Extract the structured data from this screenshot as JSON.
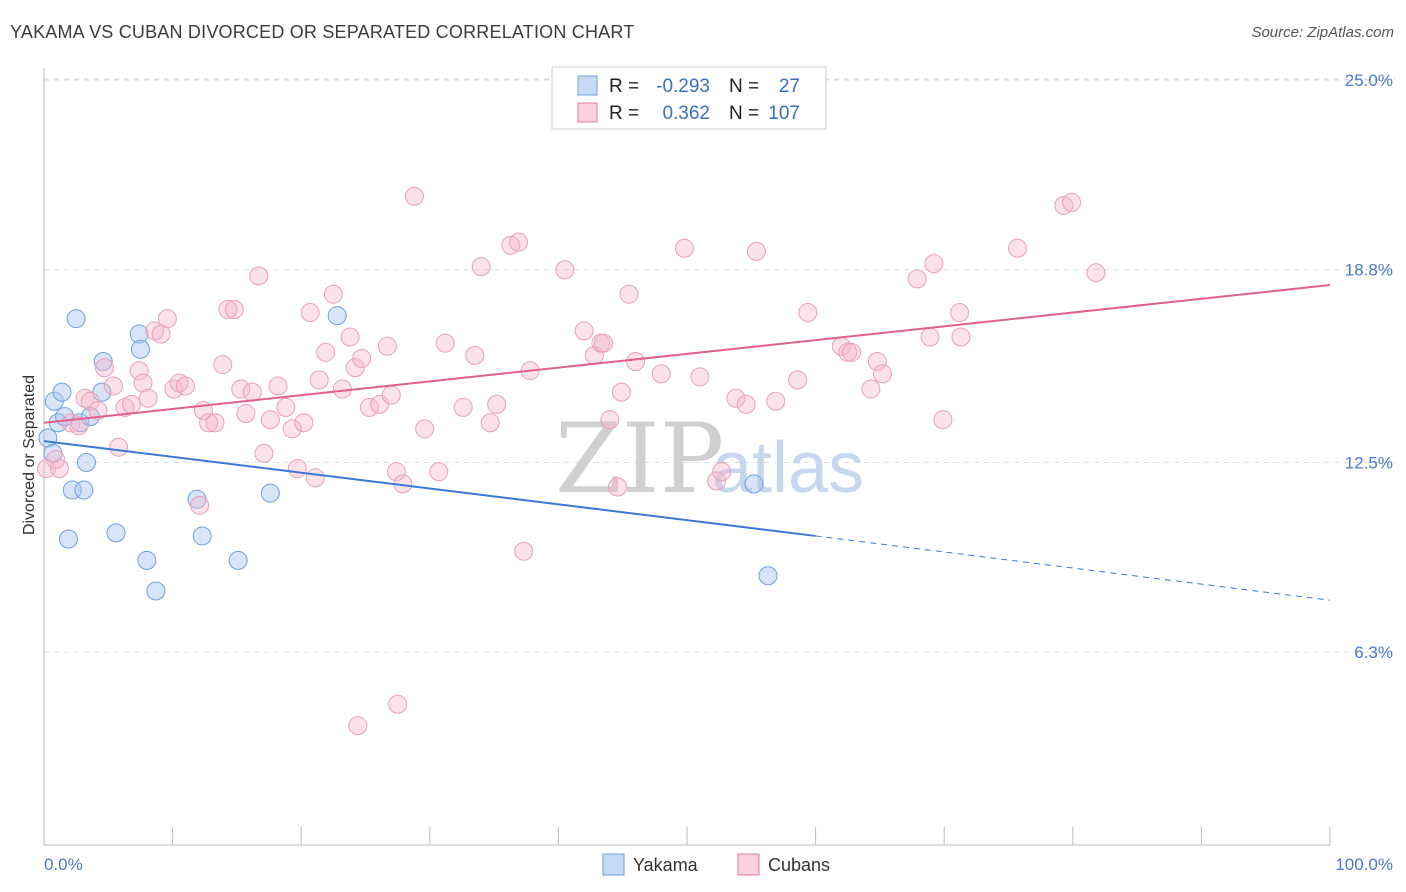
{
  "header": {
    "title": "YAKAMA VS CUBAN DIVORCED OR SEPARATED CORRELATION CHART",
    "source": "Source: ZipAtlas.com"
  },
  "watermark": {
    "zip": "ZIP",
    "atlas": "atlas"
  },
  "legend": {
    "rows": [
      {
        "r_label": "R =",
        "r_value": "-0.293",
        "n_label": "N =",
        "n_value": "27",
        "color": "#a9c5ef"
      },
      {
        "r_label": "R =",
        "r_value": "0.362",
        "n_label": "N =",
        "n_value": "107",
        "color": "#f5b6cb"
      }
    ]
  },
  "bottom_legend": [
    {
      "label": "Yakama",
      "color": "#a9c5ef"
    },
    {
      "label": "Cubans",
      "color": "#f5b6cb"
    }
  ],
  "chart_data": {
    "type": "scatter",
    "title": "YAKAMA VS CUBAN DIVORCED OR SEPARATED CORRELATION CHART",
    "xlabel": "",
    "ylabel": "Divorced or Separated",
    "xlim": [
      0,
      100
    ],
    "ylim": [
      0,
      26
    ],
    "x_tick_labels": [
      "0.0%",
      "100.0%"
    ],
    "y_ticks": [
      6.3,
      12.5,
      18.8,
      25.0
    ],
    "y_tick_labels": [
      "6.3%",
      "12.5%",
      "18.8%",
      "25.0%"
    ],
    "grid": "horizontal dashed",
    "series": [
      {
        "name": "Yakama",
        "color": "#6fa0e0",
        "points": [
          [
            0.3,
            13.3
          ],
          [
            0.7,
            12.8
          ],
          [
            0.8,
            14.5
          ],
          [
            1.1,
            13.8
          ],
          [
            1.4,
            14.8
          ],
          [
            1.6,
            14.0
          ],
          [
            1.9,
            10.0
          ],
          [
            2.2,
            11.6
          ],
          [
            2.5,
            17.2
          ],
          [
            2.8,
            13.8
          ],
          [
            3.1,
            11.6
          ],
          [
            3.3,
            12.5
          ],
          [
            3.6,
            14.0
          ],
          [
            4.5,
            14.8
          ],
          [
            4.6,
            15.8
          ],
          [
            5.6,
            10.2
          ],
          [
            7.4,
            16.7
          ],
          [
            7.5,
            16.2
          ],
          [
            8.0,
            9.3
          ],
          [
            8.7,
            8.3
          ],
          [
            11.9,
            11.3
          ],
          [
            12.3,
            10.1
          ],
          [
            15.1,
            9.3
          ],
          [
            17.6,
            11.5
          ],
          [
            22.8,
            17.3
          ],
          [
            55.2,
            11.8
          ],
          [
            56.3,
            8.8
          ]
        ],
        "trend": {
          "x_start": 0,
          "y_start": 13.2,
          "x_solid_end": 60,
          "y_solid_end": 10.1,
          "x_end": 100,
          "y_end": 8.0
        }
      },
      {
        "name": "Cubans",
        "color": "#e8779e",
        "points": [
          [
            0.2,
            12.3
          ],
          [
            0.9,
            12.6
          ],
          [
            1.2,
            12.3
          ],
          [
            2.1,
            13.8
          ],
          [
            2.7,
            13.7
          ],
          [
            3.2,
            14.6
          ],
          [
            3.6,
            14.5
          ],
          [
            4.2,
            14.2
          ],
          [
            4.7,
            15.6
          ],
          [
            5.4,
            15.0
          ],
          [
            5.8,
            13.0
          ],
          [
            6.3,
            14.3
          ],
          [
            6.8,
            14.4
          ],
          [
            7.4,
            15.5
          ],
          [
            7.7,
            15.1
          ],
          [
            8.1,
            14.6
          ],
          [
            8.6,
            16.8
          ],
          [
            9.1,
            16.7
          ],
          [
            9.6,
            17.2
          ],
          [
            10.1,
            14.9
          ],
          [
            10.5,
            15.1
          ],
          [
            11.0,
            15.0
          ],
          [
            12.1,
            11.1
          ],
          [
            12.4,
            14.2
          ],
          [
            12.8,
            13.8
          ],
          [
            13.3,
            13.8
          ],
          [
            13.9,
            15.7
          ],
          [
            14.3,
            17.5
          ],
          [
            14.8,
            17.5
          ],
          [
            15.3,
            14.9
          ],
          [
            15.7,
            14.1
          ],
          [
            16.2,
            14.8
          ],
          [
            16.7,
            18.6
          ],
          [
            17.1,
            12.8
          ],
          [
            17.6,
            13.9
          ],
          [
            18.2,
            15.0
          ],
          [
            18.8,
            14.3
          ],
          [
            19.3,
            13.6
          ],
          [
            19.7,
            12.3
          ],
          [
            20.2,
            13.8
          ],
          [
            20.7,
            17.4
          ],
          [
            21.1,
            12.0
          ],
          [
            21.4,
            15.2
          ],
          [
            21.9,
            16.1
          ],
          [
            22.5,
            18.0
          ],
          [
            23.2,
            14.9
          ],
          [
            23.8,
            16.6
          ],
          [
            24.2,
            15.6
          ],
          [
            24.7,
            15.9
          ],
          [
            25.3,
            14.3
          ],
          [
            26.1,
            14.4
          ],
          [
            26.7,
            16.3
          ],
          [
            27.0,
            14.7
          ],
          [
            27.4,
            12.2
          ],
          [
            27.9,
            11.8
          ],
          [
            27.5,
            4.6
          ],
          [
            24.4,
            3.9
          ],
          [
            28.8,
            21.2
          ],
          [
            29.6,
            13.6
          ],
          [
            30.7,
            12.2
          ],
          [
            31.2,
            16.4
          ],
          [
            32.6,
            14.3
          ],
          [
            33.5,
            16.0
          ],
          [
            34.0,
            18.9
          ],
          [
            34.7,
            13.8
          ],
          [
            35.2,
            14.4
          ],
          [
            36.3,
            19.6
          ],
          [
            36.9,
            19.7
          ],
          [
            37.8,
            15.5
          ],
          [
            37.3,
            9.6
          ],
          [
            40.5,
            18.8
          ],
          [
            42.0,
            16.8
          ],
          [
            42.8,
            16.0
          ],
          [
            43.3,
            16.4
          ],
          [
            43.5,
            16.4
          ],
          [
            44.0,
            13.9
          ],
          [
            44.6,
            11.7
          ],
          [
            44.9,
            14.8
          ],
          [
            45.5,
            18.0
          ],
          [
            46.0,
            15.8
          ],
          [
            48.0,
            15.4
          ],
          [
            49.8,
            19.5
          ],
          [
            51.0,
            15.3
          ],
          [
            52.3,
            11.9
          ],
          [
            52.7,
            12.2
          ],
          [
            53.8,
            14.6
          ],
          [
            54.6,
            14.4
          ],
          [
            55.4,
            19.4
          ],
          [
            56.9,
            14.5
          ],
          [
            58.6,
            15.2
          ],
          [
            59.4,
            17.4
          ],
          [
            62.0,
            16.3
          ],
          [
            62.5,
            16.1
          ],
          [
            62.8,
            16.1
          ],
          [
            64.3,
            14.9
          ],
          [
            64.8,
            15.8
          ],
          [
            65.2,
            15.4
          ],
          [
            67.9,
            18.5
          ],
          [
            68.9,
            16.6
          ],
          [
            69.2,
            19.0
          ],
          [
            69.9,
            13.9
          ],
          [
            71.2,
            17.4
          ],
          [
            71.3,
            16.6
          ],
          [
            75.7,
            19.5
          ],
          [
            79.3,
            20.9
          ],
          [
            79.9,
            21.0
          ],
          [
            81.8,
            18.7
          ]
        ],
        "trend": {
          "x_start": 0,
          "y_start": 13.8,
          "x_end": 100,
          "y_end": 18.3
        }
      }
    ]
  }
}
